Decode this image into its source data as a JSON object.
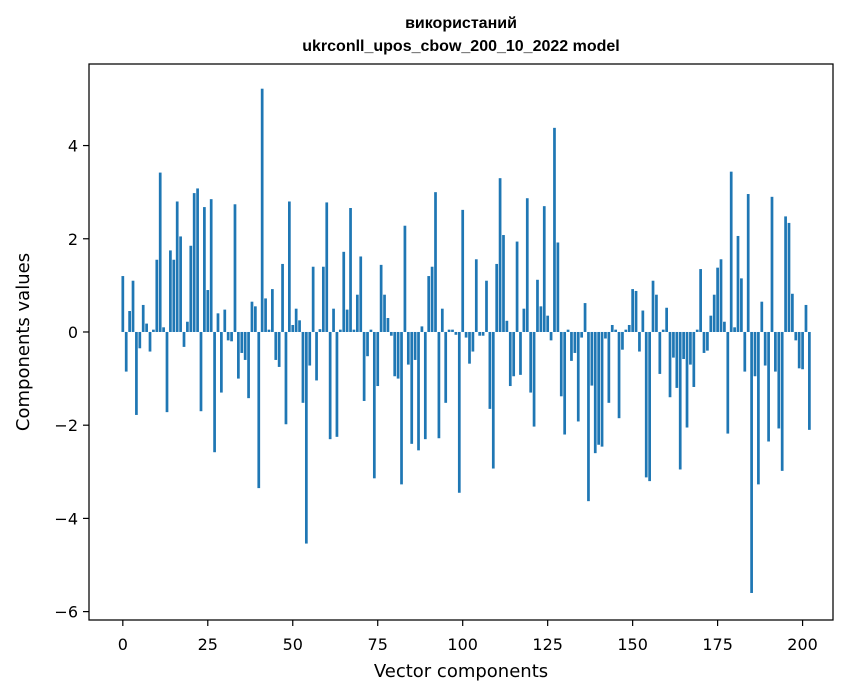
{
  "chart_data": {
    "type": "bar",
    "title_line1": "використаний",
    "title_line2": "ukrconll_upos_cbow_200_10_2022 model",
    "xlabel": "Vector components",
    "ylabel": "Components values",
    "xlim": [
      -9.95,
      208.95
    ],
    "ylim": [
      -6.18,
      5.75
    ],
    "xticks": [
      0,
      25,
      50,
      75,
      100,
      125,
      150,
      175,
      200
    ],
    "xtick_labels": [
      "0",
      "25",
      "50",
      "75",
      "100",
      "125",
      "150",
      "175",
      "200"
    ],
    "yticks": [
      -6,
      -4,
      -2,
      0,
      2,
      4
    ],
    "ytick_labels": [
      "−6",
      "−4",
      "−2",
      "0",
      "2",
      "4"
    ],
    "bar_color": "#1f77b4",
    "values": [
      1.2,
      -0.85,
      0.45,
      1.1,
      -1.78,
      -0.35,
      0.58,
      0.18,
      -0.42,
      0.05,
      1.55,
      3.42,
      0.1,
      -1.72,
      1.75,
      1.55,
      2.8,
      2.05,
      -0.32,
      0.22,
      1.85,
      2.98,
      3.08,
      -1.7,
      2.68,
      0.9,
      2.85,
      -2.58,
      0.4,
      -1.3,
      0.48,
      -0.18,
      -0.2,
      2.74,
      -1.0,
      -0.45,
      -0.6,
      -1.42,
      0.65,
      0.55,
      -3.35,
      5.22,
      0.72,
      0.05,
      0.92,
      -0.6,
      -0.75,
      1.46,
      -1.98,
      2.8,
      0.15,
      0.5,
      0.25,
      -1.52,
      -4.54,
      -0.72,
      1.4,
      -1.04,
      0.06,
      1.4,
      2.78,
      -2.3,
      0.5,
      -2.25,
      0.05,
      1.72,
      0.48,
      2.66,
      0.05,
      0.8,
      1.62,
      -1.48,
      -0.52,
      0.05,
      -3.14,
      -1.16,
      1.44,
      0.8,
      0.3,
      -0.08,
      -0.95,
      -1.0,
      -3.27,
      2.28,
      -0.7,
      -2.4,
      -0.6,
      -2.54,
      0.12,
      -2.3,
      1.2,
      1.4,
      3.0,
      -2.28,
      0.5,
      -1.52,
      0.05,
      0.05,
      -0.06,
      -3.45,
      2.62,
      -0.12,
      -0.68,
      -0.42,
      1.56,
      -0.08,
      -0.08,
      1.1,
      -1.65,
      -2.93,
      1.46,
      3.3,
      2.08,
      0.24,
      -1.16,
      -0.95,
      1.94,
      -0.92,
      0.5,
      2.87,
      -1.3,
      -2.03,
      1.12,
      0.55,
      2.7,
      0.35,
      -0.18,
      4.38,
      1.92,
      -1.38,
      -2.2,
      0.05,
      -0.62,
      -0.45,
      -1.92,
      -0.12,
      0.62,
      -3.63,
      -1.15,
      -2.6,
      -2.42,
      -2.46,
      -0.14,
      -1.52,
      0.15,
      0.05,
      -1.85,
      -0.38,
      0.05,
      0.15,
      0.92,
      0.88,
      -0.42,
      0.46,
      -3.12,
      -3.2,
      1.1,
      0.8,
      -0.9,
      0.05,
      0.52,
      -1.4,
      -0.55,
      -1.2,
      -2.95,
      -0.58,
      -2.05,
      -0.7,
      -1.18,
      0.05,
      1.35,
      -0.45,
      -0.4,
      0.35,
      0.8,
      1.38,
      1.56,
      0.22,
      -2.18,
      3.44,
      0.1,
      2.06,
      1.15,
      -0.85,
      2.96,
      -5.6,
      -0.95,
      -3.27,
      0.65,
      -0.72,
      -2.35,
      2.9,
      -0.85,
      -2.07,
      -2.98,
      2.48,
      2.34,
      0.82,
      -0.18,
      -0.78,
      -0.8,
      0.58,
      -2.1
    ]
  }
}
